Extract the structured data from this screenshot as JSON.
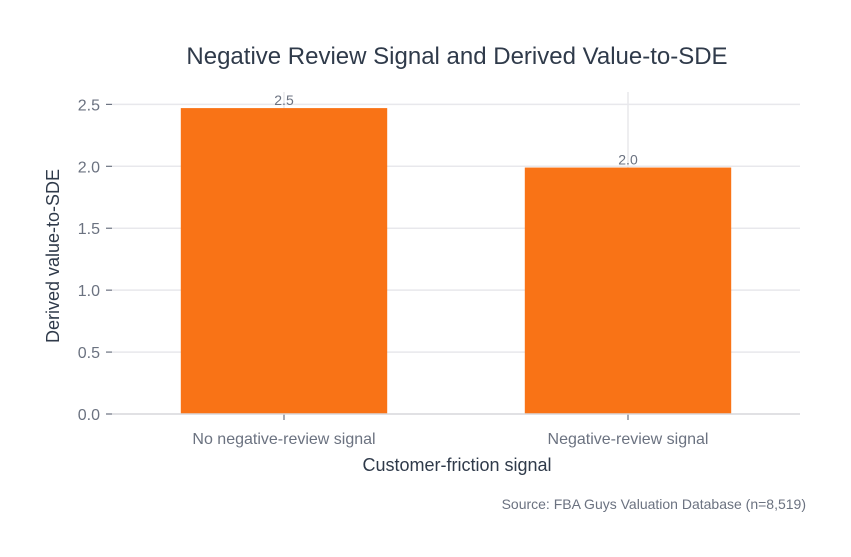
{
  "chart_data": {
    "type": "bar",
    "title": "Negative Review Signal and Derived Value-to-SDE",
    "xlabel": "Customer-friction signal",
    "ylabel": "Derived value-to-SDE",
    "categories": [
      "No negative-review signal",
      "Negative-review signal"
    ],
    "values": [
      2.47,
      1.99
    ],
    "data_labels": [
      "2.5",
      "2.0"
    ],
    "ylim": [
      0,
      2.6
    ],
    "yticks": [
      0,
      0.5,
      1,
      1.5,
      2,
      2.5
    ],
    "ytick_labels": [
      "0.0",
      "0.5",
      "1.0",
      "1.5",
      "2.0",
      "2.5"
    ],
    "grid": true,
    "bar_color": "#f97316",
    "source": "Source: FBA Guys Valuation Database (n=8,519)"
  }
}
